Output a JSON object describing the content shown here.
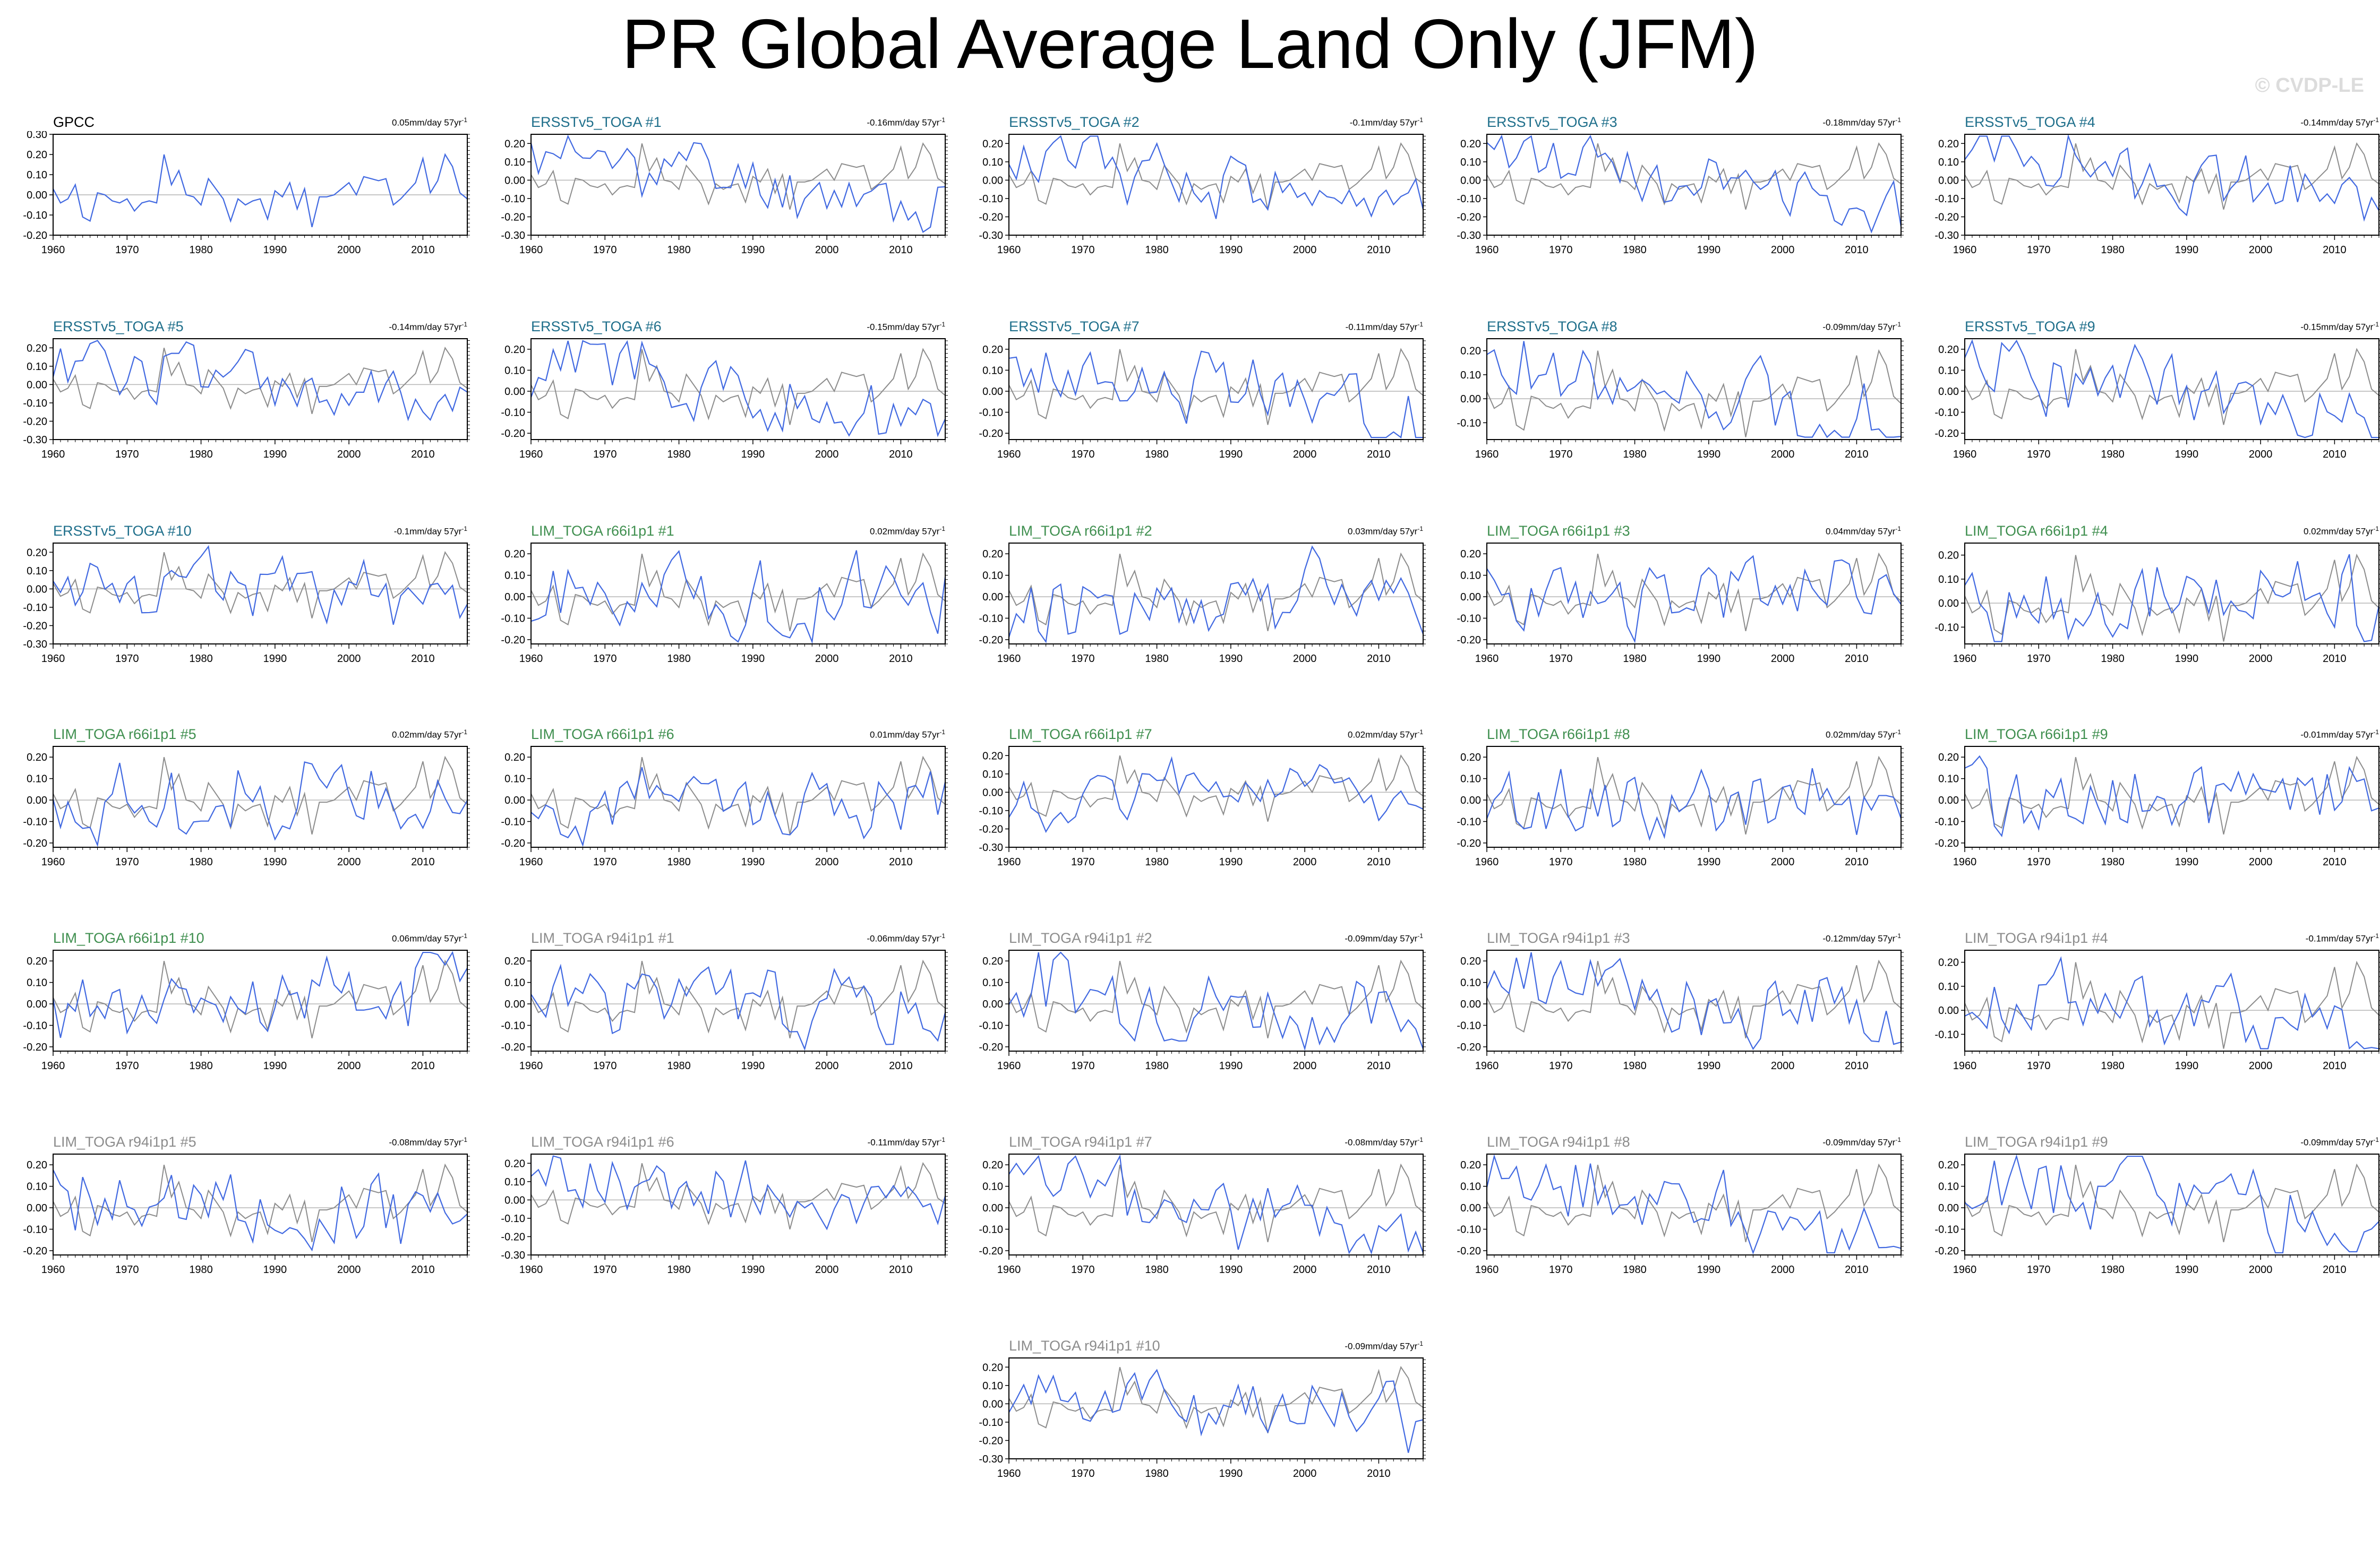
{
  "title": "PR Global Average Land Only (JFM)",
  "watermark": "© CVDP-LE",
  "colors": {
    "ensemble_line": "#4169e1",
    "observation_line": "#8c8c8c",
    "zero_line": "#b4b4b4",
    "label_obs": "#000000",
    "label_ersst": "#1f6f8b",
    "label_r66": "#3f8f4f",
    "label_r94": "#8c8c8c"
  },
  "chart_data": {
    "type": "line",
    "xlabel": "",
    "ylabel": "",
    "x_range": [
      1960,
      2016
    ],
    "x_ticks": [
      1960,
      1970,
      1980,
      1990,
      2000,
      2010
    ],
    "trend_unit": "mm/day 57yr",
    "trend_superscript": "-1",
    "observation_series": {
      "name": "GPCC",
      "values": [
        0.03,
        -0.04,
        -0.02,
        0.05,
        -0.11,
        -0.13,
        0.01,
        0.0,
        -0.03,
        -0.04,
        -0.02,
        -0.08,
        -0.04,
        -0.03,
        -0.04,
        0.2,
        0.05,
        0.12,
        0.0,
        -0.01,
        -0.05,
        0.08,
        0.03,
        -0.02,
        -0.13,
        -0.02,
        -0.05,
        -0.03,
        -0.02,
        -0.12,
        0.02,
        -0.01,
        0.06,
        -0.07,
        0.03,
        -0.16,
        -0.01,
        -0.01,
        0.0,
        0.03,
        0.06,
        0.0,
        0.09,
        0.08,
        0.07,
        0.08,
        -0.05,
        -0.02,
        0.02,
        0.06,
        0.18,
        0.01,
        0.07,
        0.2,
        0.14,
        0.01,
        -0.02
      ]
    },
    "panels": [
      {
        "label": "GPCC",
        "label_kind": "obs",
        "trend": "0.05",
        "yticks": [
          "0.30",
          "0.20",
          "0.10",
          "0.00",
          "-0.10",
          "-0.20"
        ],
        "ylim": [
          -0.2,
          0.3
        ],
        "seed": 0
      },
      {
        "label": "ERSSTv5_TOGA #1",
        "label_kind": "ersst",
        "trend": "-0.16",
        "yticks": [
          "0.20",
          "0.10",
          "0.00",
          "-0.10",
          "-0.20",
          "-0.30"
        ],
        "ylim": [
          -0.3,
          0.25
        ],
        "seed": 11,
        "drift": -0.0025
      },
      {
        "label": "ERSSTv5_TOGA #2",
        "label_kind": "ersst",
        "trend": "-0.1",
        "yticks": [
          "0.20",
          "0.10",
          "0.00",
          "-0.10",
          "-0.20",
          "-0.30"
        ],
        "ylim": [
          -0.3,
          0.25
        ],
        "seed": 12,
        "drift": -0.0015
      },
      {
        "label": "ERSSTv5_TOGA #3",
        "label_kind": "ersst",
        "trend": "-0.18",
        "yticks": [
          "0.20",
          "0.10",
          "0.00",
          "-0.10",
          "-0.20",
          "-0.30"
        ],
        "ylim": [
          -0.3,
          0.25
        ],
        "seed": 13,
        "drift": -0.003
      },
      {
        "label": "ERSSTv5_TOGA #4",
        "label_kind": "ersst",
        "trend": "-0.14",
        "yticks": [
          "0.20",
          "0.10",
          "0.00",
          "-0.10",
          "-0.20",
          "-0.30"
        ],
        "ylim": [
          -0.3,
          0.25
        ],
        "seed": 14,
        "drift": -0.0025
      },
      {
        "label": "ERSSTv5_TOGA #5",
        "label_kind": "ersst",
        "trend": "-0.14",
        "yticks": [
          "0.20",
          "0.10",
          "0.00",
          "-0.10",
          "-0.20",
          "-0.30"
        ],
        "ylim": [
          -0.3,
          0.25
        ],
        "seed": 15,
        "drift": -0.0025
      },
      {
        "label": "ERSSTv5_TOGA #6",
        "label_kind": "ersst",
        "trend": "-0.15",
        "yticks": [
          "0.20",
          "0.10",
          "0.00",
          "-0.10",
          "-0.20"
        ],
        "ylim": [
          -0.23,
          0.25
        ],
        "seed": 16,
        "drift": -0.0025
      },
      {
        "label": "ERSSTv5_TOGA #7",
        "label_kind": "ersst",
        "trend": "-0.11",
        "yticks": [
          "0.20",
          "0.10",
          "0.00",
          "-0.10",
          "-0.20"
        ],
        "ylim": [
          -0.23,
          0.25
        ],
        "seed": 17,
        "drift": -0.002
      },
      {
        "label": "ERSSTv5_TOGA #8",
        "label_kind": "ersst",
        "trend": "-0.09",
        "yticks": [
          "0.20",
          "0.10",
          "0.00",
          "-0.10"
        ],
        "ylim": [
          -0.17,
          0.25
        ],
        "seed": 18,
        "drift": -0.0015
      },
      {
        "label": "ERSSTv5_TOGA #9",
        "label_kind": "ersst",
        "trend": "-0.15",
        "yticks": [
          "0.20",
          "0.10",
          "0.00",
          "-0.10",
          "-0.20"
        ],
        "ylim": [
          -0.23,
          0.25
        ],
        "seed": 19,
        "drift": -0.0025
      },
      {
        "label": "ERSSTv5_TOGA #10",
        "label_kind": "ersst",
        "trend": "-0.1",
        "yticks": [
          "0.20",
          "0.10",
          "0.00",
          "-0.10",
          "-0.20",
          "-0.30"
        ],
        "ylim": [
          -0.3,
          0.25
        ],
        "seed": 20,
        "drift": -0.0015
      },
      {
        "label": "LIM_TOGA r66i1p1 #1",
        "label_kind": "r66",
        "trend": "0.02",
        "yticks": [
          "0.20",
          "0.10",
          "0.00",
          "-0.10",
          "-0.20"
        ],
        "ylim": [
          -0.22,
          0.25
        ],
        "seed": 21,
        "drift": 0.0004
      },
      {
        "label": "LIM_TOGA r66i1p1 #2",
        "label_kind": "r66",
        "trend": "0.03",
        "yticks": [
          "0.20",
          "0.10",
          "0.00",
          "-0.10",
          "-0.20"
        ],
        "ylim": [
          -0.22,
          0.25
        ],
        "seed": 22,
        "drift": 0.0005
      },
      {
        "label": "LIM_TOGA r66i1p1 #3",
        "label_kind": "r66",
        "trend": "0.04",
        "yticks": [
          "0.20",
          "0.10",
          "0.00",
          "-0.10",
          "-0.20"
        ],
        "ylim": [
          -0.22,
          0.25
        ],
        "seed": 23,
        "drift": 0.0007
      },
      {
        "label": "LIM_TOGA r66i1p1 #4",
        "label_kind": "r66",
        "trend": "0.02",
        "yticks": [
          "0.20",
          "0.10",
          "0.00",
          "-0.10"
        ],
        "ylim": [
          -0.17,
          0.25
        ],
        "seed": 24,
        "drift": 0.0004
      },
      {
        "label": "LIM_TOGA r66i1p1 #5",
        "label_kind": "r66",
        "trend": "0.02",
        "yticks": [
          "0.20",
          "0.10",
          "0.00",
          "-0.10",
          "-0.20"
        ],
        "ylim": [
          -0.22,
          0.25
        ],
        "seed": 25,
        "drift": 0.0004
      },
      {
        "label": "LIM_TOGA r66i1p1 #6",
        "label_kind": "r66",
        "trend": "0.01",
        "yticks": [
          "0.20",
          "0.10",
          "0.00",
          "-0.10",
          "-0.20"
        ],
        "ylim": [
          -0.22,
          0.25
        ],
        "seed": 26,
        "drift": 0.0002
      },
      {
        "label": "LIM_TOGA r66i1p1 #7",
        "label_kind": "r66",
        "trend": "0.02",
        "yticks": [
          "0.20",
          "0.10",
          "0.00",
          "-0.10",
          "-0.20",
          "-0.30"
        ],
        "ylim": [
          -0.3,
          0.25
        ],
        "seed": 27,
        "drift": 0.0004
      },
      {
        "label": "LIM_TOGA r66i1p1 #8",
        "label_kind": "r66",
        "trend": "0.02",
        "yticks": [
          "0.20",
          "0.10",
          "0.00",
          "-0.10",
          "-0.20"
        ],
        "ylim": [
          -0.22,
          0.25
        ],
        "seed": 28,
        "drift": 0.0004
      },
      {
        "label": "LIM_TOGA r66i1p1 #9",
        "label_kind": "r66",
        "trend": "-0.01",
        "yticks": [
          "0.20",
          "0.10",
          "0.00",
          "-0.10",
          "-0.20"
        ],
        "ylim": [
          -0.22,
          0.25
        ],
        "seed": 29,
        "drift": -0.0002
      },
      {
        "label": "LIM_TOGA r66i1p1 #10",
        "label_kind": "r66",
        "trend": "0.06",
        "yticks": [
          "0.20",
          "0.10",
          "0.00",
          "-0.10",
          "-0.20"
        ],
        "ylim": [
          -0.22,
          0.25
        ],
        "seed": 30,
        "drift": 0.001
      },
      {
        "label": "LIM_TOGA r94i1p1 #1",
        "label_kind": "r94",
        "trend": "-0.06",
        "yticks": [
          "0.20",
          "0.10",
          "0.00",
          "-0.10",
          "-0.20"
        ],
        "ylim": [
          -0.22,
          0.25
        ],
        "seed": 31,
        "drift": -0.001
      },
      {
        "label": "LIM_TOGA r94i1p1 #2",
        "label_kind": "r94",
        "trend": "-0.09",
        "yticks": [
          "0.20",
          "0.10",
          "0.00",
          "-0.10",
          "-0.20"
        ],
        "ylim": [
          -0.22,
          0.25
        ],
        "seed": 32,
        "drift": -0.0015
      },
      {
        "label": "LIM_TOGA r94i1p1 #3",
        "label_kind": "r94",
        "trend": "-0.12",
        "yticks": [
          "0.20",
          "0.10",
          "0.00",
          "-0.10",
          "-0.20"
        ],
        "ylim": [
          -0.22,
          0.25
        ],
        "seed": 33,
        "drift": -0.002
      },
      {
        "label": "LIM_TOGA r94i1p1 #4",
        "label_kind": "r94",
        "trend": "-0.1",
        "yticks": [
          "0.20",
          "0.10",
          "0.00",
          "-0.10"
        ],
        "ylim": [
          -0.17,
          0.25
        ],
        "seed": 34,
        "drift": -0.0015
      },
      {
        "label": "LIM_TOGA r94i1p1 #5",
        "label_kind": "r94",
        "trend": "-0.08",
        "yticks": [
          "0.20",
          "0.10",
          "0.00",
          "-0.10",
          "-0.20"
        ],
        "ylim": [
          -0.22,
          0.25
        ],
        "seed": 35,
        "drift": -0.0013
      },
      {
        "label": "LIM_TOGA r94i1p1 #6",
        "label_kind": "r94",
        "trend": "-0.11",
        "yticks": [
          "0.20",
          "0.10",
          "0.00",
          "-0.10",
          "-0.20",
          "-0.30"
        ],
        "ylim": [
          -0.3,
          0.25
        ],
        "seed": 36,
        "drift": -0.0018
      },
      {
        "label": "LIM_TOGA r94i1p1 #7",
        "label_kind": "r94",
        "trend": "-0.08",
        "yticks": [
          "0.20",
          "0.10",
          "0.00",
          "-0.10",
          "-0.20"
        ],
        "ylim": [
          -0.22,
          0.25
        ],
        "seed": 37,
        "drift": -0.0013
      },
      {
        "label": "LIM_TOGA r94i1p1 #8",
        "label_kind": "r94",
        "trend": "-0.09",
        "yticks": [
          "0.20",
          "0.10",
          "0.00",
          "-0.10",
          "-0.20"
        ],
        "ylim": [
          -0.22,
          0.25
        ],
        "seed": 38,
        "drift": -0.0015
      },
      {
        "label": "LIM_TOGA r94i1p1 #9",
        "label_kind": "r94",
        "trend": "-0.09",
        "yticks": [
          "0.20",
          "0.10",
          "0.00",
          "-0.10",
          "-0.20"
        ],
        "ylim": [
          -0.22,
          0.25
        ],
        "seed": 39,
        "drift": -0.0015
      },
      {
        "label": "LIM_TOGA r94i1p1 #10",
        "label_kind": "r94",
        "trend": "-0.09",
        "yticks": [
          "0.20",
          "0.10",
          "0.00",
          "-0.10",
          "-0.20",
          "-0.30"
        ],
        "ylim": [
          -0.3,
          0.25
        ],
        "seed": 40,
        "drift": -0.0015
      }
    ]
  }
}
